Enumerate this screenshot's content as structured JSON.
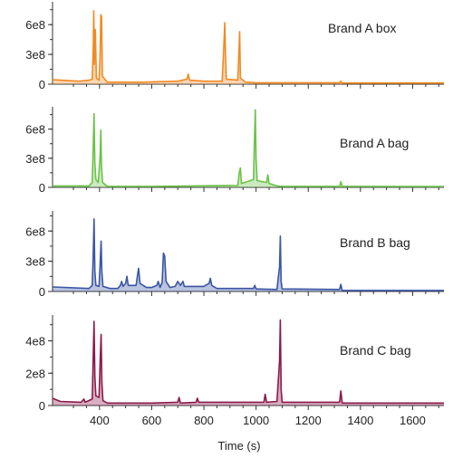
{
  "chart_data": [
    {
      "type": "line",
      "label": "Brand A box",
      "color": "#F08A24",
      "xlim": [
        220,
        1720
      ],
      "ylim": [
        0,
        830000000.0
      ],
      "yticks": [
        0,
        300000000,
        600000000
      ],
      "ytick_labels": [
        "0",
        "3e8",
        "6e8"
      ],
      "baseline": 25000000.0,
      "tail_baseline": 12000000.0,
      "points": [
        [
          220,
          45000000.0
        ],
        [
          320,
          30000000.0
        ],
        [
          360,
          40000000.0
        ],
        [
          372,
          50000000.0
        ],
        [
          376,
          350000000.0
        ],
        [
          378,
          740000000.0
        ],
        [
          380,
          200000000.0
        ],
        [
          384,
          550000000.0
        ],
        [
          388,
          60000000.0
        ],
        [
          398,
          40000000.0
        ],
        [
          402,
          250000000.0
        ],
        [
          405,
          700000000.0
        ],
        [
          408,
          680000000.0
        ],
        [
          411,
          80000000.0
        ],
        [
          430,
          20000000.0
        ],
        [
          560,
          20000000.0
        ],
        [
          700,
          30000000.0
        ],
        [
          735,
          50000000.0
        ],
        [
          740,
          100000000.0
        ],
        [
          745,
          40000000.0
        ],
        [
          800,
          30000000.0
        ],
        [
          870,
          30000000.0
        ],
        [
          876,
          350000000.0
        ],
        [
          880,
          620000000.0
        ],
        [
          883,
          300000000.0
        ],
        [
          886,
          50000000.0
        ],
        [
          930,
          40000000.0
        ],
        [
          934,
          300000000.0
        ],
        [
          937,
          530000000.0
        ],
        [
          940,
          60000000.0
        ],
        [
          960,
          20000000.0
        ],
        [
          1000,
          15000000.0
        ],
        [
          1100,
          15000000.0
        ],
        [
          1320,
          15000000.0
        ],
        [
          1325,
          30000000.0
        ],
        [
          1330,
          12000000.0
        ],
        [
          1720,
          12000000.0
        ]
      ]
    },
    {
      "type": "line",
      "label": "Brand A bag",
      "color": "#6CC24A",
      "xlim": [
        220,
        1720
      ],
      "ylim": [
        0,
        830000000.0
      ],
      "yticks": [
        0,
        300000000,
        600000000
      ],
      "ytick_labels": [
        "0",
        "3e8",
        "6e8"
      ],
      "baseline": 10000000.0,
      "tail_baseline": 8000000.0,
      "points": [
        [
          220,
          15000000.0
        ],
        [
          360,
          15000000.0
        ],
        [
          372,
          50000000.0
        ],
        [
          376,
          420000000.0
        ],
        [
          379,
          760000000.0
        ],
        [
          382,
          250000000.0
        ],
        [
          386,
          80000000.0
        ],
        [
          395,
          50000000.0
        ],
        [
          402,
          300000000.0
        ],
        [
          405,
          590000000.0
        ],
        [
          408,
          200000000.0
        ],
        [
          412,
          50000000.0
        ],
        [
          430,
          10000000.0
        ],
        [
          600,
          10000000.0
        ],
        [
          930,
          20000000.0
        ],
        [
          936,
          160000000.0
        ],
        [
          940,
          200000000.0
        ],
        [
          944,
          40000000.0
        ],
        [
          990,
          80000000.0
        ],
        [
          994,
          500000000.0
        ],
        [
          997,
          800000000.0
        ],
        [
          1000,
          300000000.0
        ],
        [
          1004,
          70000000.0
        ],
        [
          1040,
          50000000.0
        ],
        [
          1045,
          130000000.0
        ],
        [
          1050,
          40000000.0
        ],
        [
          1080,
          15000000.0
        ],
        [
          1100,
          10000000.0
        ],
        [
          1320,
          10000000.0
        ],
        [
          1325,
          60000000.0
        ],
        [
          1330,
          10000000.0
        ],
        [
          1720,
          8000000.0
        ]
      ]
    },
    {
      "type": "line",
      "label": "Brand B bag",
      "color": "#3A55A4",
      "xlim": [
        220,
        1720
      ],
      "ylim": [
        0,
        800000000.0
      ],
      "yticks": [
        0,
        300000000,
        600000000
      ],
      "ytick_labels": [
        "0",
        "3e8",
        "6e8"
      ],
      "baseline": 20000000.0,
      "tail_baseline": 10000000.0,
      "points": [
        [
          220,
          45000000.0
        ],
        [
          360,
          30000000.0
        ],
        [
          372,
          60000000.0
        ],
        [
          376,
          360000000.0
        ],
        [
          379,
          720000000.0
        ],
        [
          382,
          200000000.0
        ],
        [
          386,
          60000000.0
        ],
        [
          398,
          50000000.0
        ],
        [
          402,
          250000000.0
        ],
        [
          406,
          500000000.0
        ],
        [
          409,
          200000000.0
        ],
        [
          413,
          50000000.0
        ],
        [
          440,
          30000000.0
        ],
        [
          470,
          30000000.0
        ],
        [
          480,
          60000000.0
        ],
        [
          485,
          100000000.0
        ],
        [
          490,
          50000000.0
        ],
        [
          500,
          80000000.0
        ],
        [
          505,
          150000000.0
        ],
        [
          510,
          60000000.0
        ],
        [
          540,
          60000000.0
        ],
        [
          545,
          150000000.0
        ],
        [
          550,
          230000000.0
        ],
        [
          555,
          80000000.0
        ],
        [
          580,
          40000000.0
        ],
        [
          600,
          40000000.0
        ],
        [
          620,
          60000000.0
        ],
        [
          625,
          100000000.0
        ],
        [
          632,
          40000000.0
        ],
        [
          640,
          90000000.0
        ],
        [
          645,
          380000000.0
        ],
        [
          650,
          350000000.0
        ],
        [
          655,
          100000000.0
        ],
        [
          670,
          40000000.0
        ],
        [
          690,
          50000000.0
        ],
        [
          700,
          100000000.0
        ],
        [
          710,
          60000000.0
        ],
        [
          720,
          100000000.0
        ],
        [
          725,
          50000000.0
        ],
        [
          760,
          50000000.0
        ],
        [
          800,
          50000000.0
        ],
        [
          820,
          80000000.0
        ],
        [
          825,
          130000000.0
        ],
        [
          830,
          60000000.0
        ],
        [
          850,
          30000000.0
        ],
        [
          990,
          30000000.0
        ],
        [
          995,
          60000000.0
        ],
        [
          1000,
          25000000.0
        ],
        [
          1080,
          20000000.0
        ],
        [
          1090,
          250000000.0
        ],
        [
          1093,
          550000000.0
        ],
        [
          1096,
          100000000.0
        ],
        [
          1100,
          25000000.0
        ],
        [
          1320,
          20000000.0
        ],
        [
          1325,
          70000000.0
        ],
        [
          1330,
          10000000.0
        ],
        [
          1720,
          10000000.0
        ]
      ]
    },
    {
      "type": "line",
      "label": "Brand C bag",
      "color": "#8B1A4A",
      "xlim": [
        220,
        1720
      ],
      "ylim": [
        0,
        560000000.0
      ],
      "yticks": [
        0,
        200000000,
        400000000
      ],
      "ytick_labels": [
        "0",
        "2e8",
        "4e8"
      ],
      "baseline": 12000000.0,
      "tail_baseline": 15000000.0,
      "points": [
        [
          220,
          45000000.0
        ],
        [
          250,
          25000000.0
        ],
        [
          330,
          20000000.0
        ],
        [
          340,
          40000000.0
        ],
        [
          345,
          20000000.0
        ],
        [
          372,
          40000000.0
        ],
        [
          376,
          300000000.0
        ],
        [
          379,
          520000000.0
        ],
        [
          382,
          180000000.0
        ],
        [
          386,
          60000000.0
        ],
        [
          398,
          50000000.0
        ],
        [
          402,
          250000000.0
        ],
        [
          406,
          440000000.0
        ],
        [
          409,
          150000000.0
        ],
        [
          413,
          30000000.0
        ],
        [
          430,
          15000000.0
        ],
        [
          600,
          15000000.0
        ],
        [
          700,
          20000000.0
        ],
        [
          705,
          50000000.0
        ],
        [
          710,
          15000000.0
        ],
        [
          770,
          20000000.0
        ],
        [
          775,
          45000000.0
        ],
        [
          780,
          20000000.0
        ],
        [
          830,
          20000000.0
        ],
        [
          1030,
          20000000.0
        ],
        [
          1035,
          70000000.0
        ],
        [
          1040,
          20000000.0
        ],
        [
          1080,
          25000000.0
        ],
        [
          1090,
          280000000.0
        ],
        [
          1093,
          530000000.0
        ],
        [
          1096,
          100000000.0
        ],
        [
          1100,
          20000000.0
        ],
        [
          1320,
          20000000.0
        ],
        [
          1325,
          90000000.0
        ],
        [
          1330,
          15000000.0
        ],
        [
          1720,
          15000000.0
        ]
      ]
    }
  ],
  "x_axis": {
    "label": "Time (s)",
    "ticks": [
      400,
      600,
      800,
      1000,
      1200,
      1400,
      1600
    ],
    "tick_labels": [
      "400",
      "600",
      "800",
      "1000",
      "1200",
      "1400",
      "1600"
    ]
  }
}
